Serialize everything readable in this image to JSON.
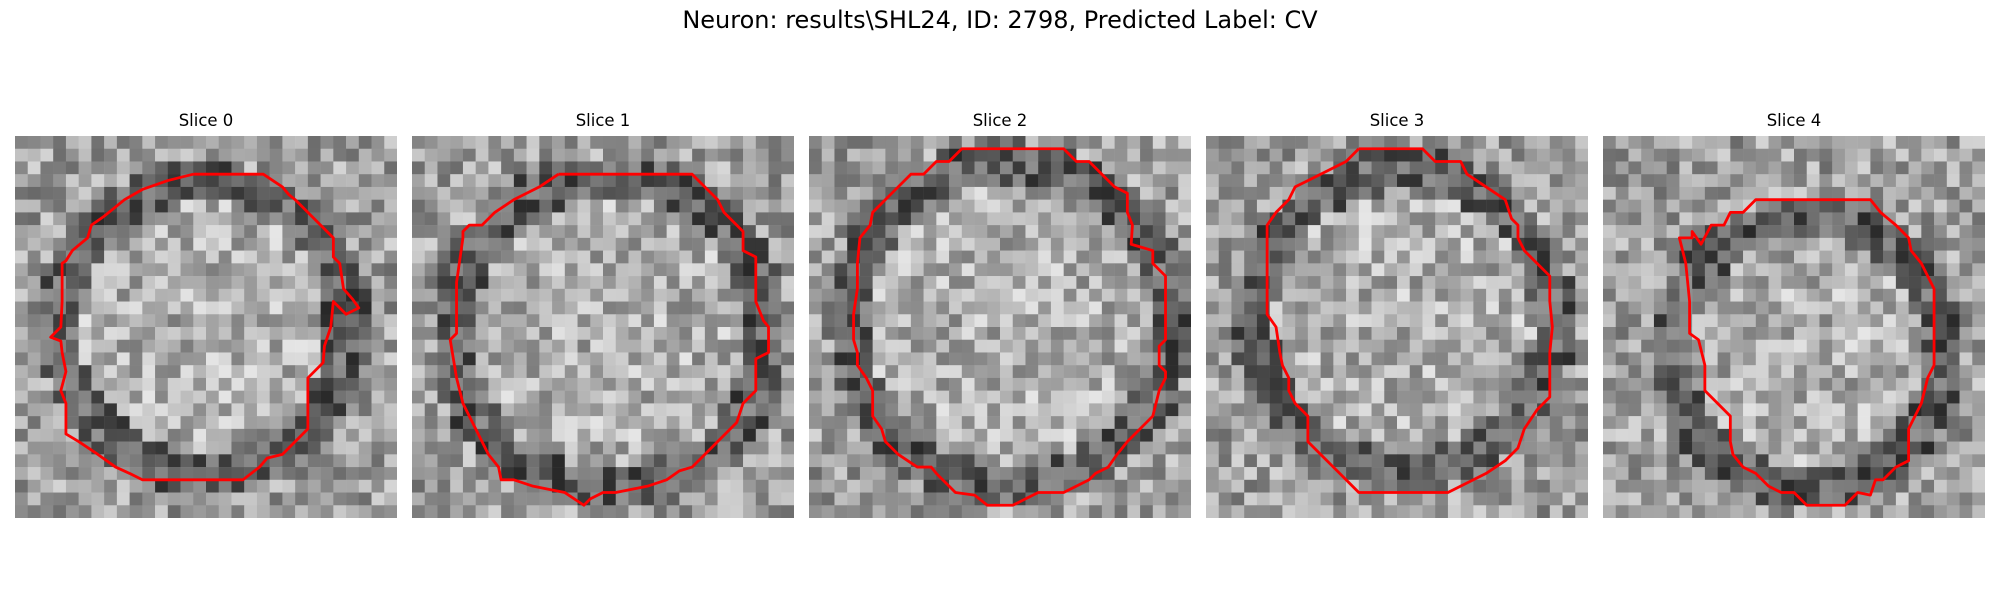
{
  "figure": {
    "title": "Neuron: results\\SHL24, ID: 2798, Predicted Label: CV",
    "contour_color": "#ff0000"
  },
  "panels": [
    {
      "title": "Slice 0"
    },
    {
      "title": "Slice 1"
    },
    {
      "title": "Slice 2"
    },
    {
      "title": "Slice 3"
    },
    {
      "title": "Slice 4"
    }
  ]
}
